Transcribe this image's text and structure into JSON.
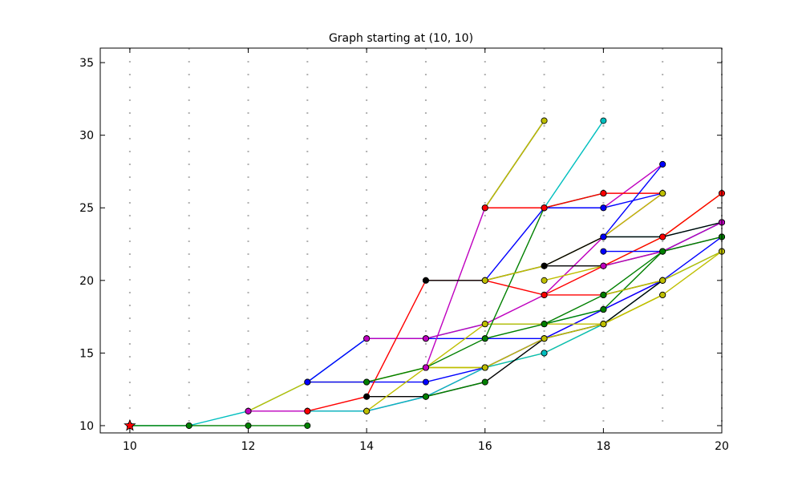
{
  "chart_data": {
    "type": "line",
    "title": "Graph starting at (10, 10)",
    "xlabel": "",
    "ylabel": "",
    "xlim": [
      9.5,
      20
    ],
    "ylim": [
      9.5,
      36
    ],
    "xticks": [
      10,
      12,
      14,
      16,
      18,
      20
    ],
    "yticks": [
      10,
      15,
      20,
      25,
      30,
      35
    ],
    "grid": "vertical dotted at each integer x",
    "start_point": {
      "x": 10,
      "y": 10,
      "marker": "star",
      "color": "#ff0000"
    },
    "series": [
      {
        "color": "#00bfbf",
        "points": [
          [
            10,
            10
          ],
          [
            11,
            10
          ],
          [
            12,
            11
          ],
          [
            13,
            13
          ],
          [
            14,
            16
          ],
          [
            15,
            16
          ],
          [
            16,
            17
          ],
          [
            17,
            17
          ],
          [
            18,
            18
          ]
        ]
      },
      {
        "color": "#bfbf00",
        "points": [
          [
            12,
            11
          ],
          [
            13,
            13
          ],
          [
            14,
            13
          ],
          [
            15,
            14
          ],
          [
            16,
            14
          ],
          [
            17,
            15
          ],
          [
            18,
            17
          ],
          [
            19,
            19
          ]
        ]
      },
      {
        "color": "#bf00bf",
        "points": [
          [
            12,
            11
          ],
          [
            13,
            11
          ],
          [
            14,
            11
          ],
          [
            15,
            12
          ],
          [
            16,
            14
          ],
          [
            17,
            16
          ],
          [
            18,
            18
          ],
          [
            19,
            20
          ]
        ]
      },
      {
        "color": "#008000",
        "points": [
          [
            10,
            10
          ],
          [
            11,
            10
          ],
          [
            12,
            10
          ],
          [
            13,
            10
          ]
        ]
      },
      {
        "color": "#0000ff",
        "points": [
          [
            13,
            13
          ],
          [
            14,
            16
          ],
          [
            15,
            16
          ],
          [
            16,
            16
          ],
          [
            17,
            16
          ],
          [
            18,
            17
          ]
        ]
      },
      {
        "color": "#0000ff",
        "points": [
          [
            13,
            13
          ],
          [
            14,
            13
          ],
          [
            15,
            13
          ],
          [
            16,
            14
          ],
          [
            17,
            16
          ],
          [
            18,
            18
          ],
          [
            19,
            20
          ],
          [
            20,
            23
          ]
        ]
      },
      {
        "color": "#00bfbf",
        "points": [
          [
            13,
            11
          ],
          [
            14,
            11
          ],
          [
            15,
            12
          ],
          [
            16,
            14
          ],
          [
            17,
            15
          ],
          [
            18,
            17
          ],
          [
            19,
            20
          ],
          [
            20,
            22
          ]
        ]
      },
      {
        "color": "#bf00bf",
        "points": [
          [
            14,
            16
          ],
          [
            15,
            16
          ],
          [
            16,
            17
          ],
          [
            17,
            19
          ],
          [
            18,
            23
          ],
          [
            19,
            26
          ]
        ]
      },
      {
        "color": "#ff0000",
        "points": [
          [
            13,
            11
          ],
          [
            14,
            12
          ],
          [
            15,
            20
          ],
          [
            16,
            20
          ],
          [
            17,
            19
          ],
          [
            18,
            19
          ],
          [
            19,
            20
          ]
        ]
      },
      {
        "color": "#000000",
        "points": [
          [
            14,
            12
          ],
          [
            15,
            12
          ],
          [
            16,
            13
          ],
          [
            17,
            16
          ],
          [
            18,
            17
          ],
          [
            19,
            20
          ]
        ]
      },
      {
        "color": "#008000",
        "points": [
          [
            14,
            13
          ],
          [
            15,
            14
          ],
          [
            16,
            16
          ],
          [
            17,
            17
          ],
          [
            18,
            19
          ],
          [
            19,
            20
          ]
        ]
      },
      {
        "color": "#008000",
        "points": [
          [
            15,
            12
          ],
          [
            16,
            13
          ]
        ]
      },
      {
        "color": "#bfbf00",
        "points": [
          [
            14,
            11
          ],
          [
            15,
            14
          ],
          [
            16,
            14
          ],
          [
            17,
            16
          ],
          [
            18,
            17
          ],
          [
            19,
            19
          ],
          [
            20,
            22
          ]
        ]
      },
      {
        "color": "#bfbf00",
        "points": [
          [
            15,
            14
          ],
          [
            16,
            17
          ],
          [
            17,
            17
          ],
          [
            18,
            17
          ],
          [
            19,
            19
          ]
        ]
      },
      {
        "color": "#bf00bf",
        "points": [
          [
            15,
            14
          ],
          [
            16,
            25
          ],
          [
            17,
            25
          ],
          [
            18,
            25
          ],
          [
            19,
            28
          ]
        ]
      },
      {
        "color": "#0000ff",
        "points": [
          [
            16,
            20
          ],
          [
            17,
            25
          ],
          [
            18,
            25
          ],
          [
            19,
            26
          ]
        ]
      },
      {
        "color": "#000000",
        "points": [
          [
            15,
            20
          ],
          [
            16,
            20
          ],
          [
            17,
            21
          ],
          [
            18,
            21
          ],
          [
            19,
            22
          ],
          [
            20,
            23
          ]
        ]
      },
      {
        "color": "#000000",
        "points": [
          [
            16,
            25
          ],
          [
            17,
            31
          ]
        ]
      },
      {
        "color": "#bfbf00",
        "points": [
          [
            16,
            25
          ],
          [
            17,
            31
          ]
        ]
      },
      {
        "color": "#00bfbf",
        "points": [
          [
            17,
            25
          ],
          [
            18,
            31
          ]
        ]
      },
      {
        "color": "#00bfbf",
        "points": [
          [
            17,
            25
          ],
          [
            18,
            26
          ]
        ]
      },
      {
        "color": "#008000",
        "points": [
          [
            16,
            16
          ],
          [
            17,
            25
          ],
          [
            18,
            26
          ]
        ]
      },
      {
        "color": "#ff0000",
        "points": [
          [
            16,
            25
          ],
          [
            17,
            25
          ],
          [
            18,
            26
          ],
          [
            19,
            26
          ]
        ]
      },
      {
        "color": "#bfbf00",
        "points": [
          [
            16,
            20
          ],
          [
            17,
            21
          ],
          [
            18,
            23
          ],
          [
            19,
            26
          ]
        ]
      },
      {
        "color": "#00bfbf",
        "points": [
          [
            18,
            23
          ],
          [
            19,
            23
          ],
          [
            20,
            24
          ]
        ]
      },
      {
        "color": "#000000",
        "points": [
          [
            17,
            21
          ],
          [
            18,
            23
          ],
          [
            19,
            23
          ],
          [
            20,
            24
          ]
        ]
      },
      {
        "color": "#bfbf00",
        "points": [
          [
            17,
            20
          ],
          [
            18,
            21
          ],
          [
            19,
            23
          ],
          [
            20,
            26
          ]
        ]
      },
      {
        "color": "#ff0000",
        "points": [
          [
            17,
            19
          ],
          [
            18,
            21
          ],
          [
            19,
            23
          ],
          [
            20,
            26
          ]
        ]
      },
      {
        "color": "#008000",
        "points": [
          [
            17,
            17
          ],
          [
            18,
            18
          ],
          [
            19,
            22
          ],
          [
            20,
            24
          ]
        ]
      },
      {
        "color": "#0000ff",
        "points": [
          [
            18,
            22
          ],
          [
            19,
            22
          ],
          [
            20,
            24
          ]
        ]
      },
      {
        "color": "#bf00bf",
        "points": [
          [
            18,
            21
          ],
          [
            19,
            22
          ],
          [
            20,
            24
          ]
        ]
      },
      {
        "color": "#bfbf00",
        "points": [
          [
            18,
            19
          ],
          [
            19,
            20
          ],
          [
            20,
            22
          ]
        ]
      },
      {
        "color": "#008000",
        "points": [
          [
            18,
            19
          ],
          [
            19,
            22
          ],
          [
            20,
            23
          ]
        ]
      },
      {
        "color": "#0000ff",
        "points": [
          [
            18,
            23
          ],
          [
            19,
            28
          ]
        ]
      }
    ]
  }
}
